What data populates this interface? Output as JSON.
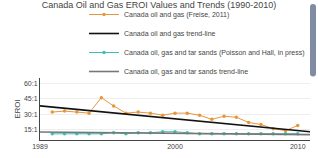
{
  "chart_data": {
    "type": "line",
    "title": "Canada Oil and Gas EROI Values and Trends (1990-2010)",
    "ylabel": "EROI",
    "xlim": [
      1989,
      2011
    ],
    "ylim": [
      5,
      65
    ],
    "xticks": [
      1989,
      2000,
      2010
    ],
    "yticks": [
      {
        "value": 15,
        "label": "15:1"
      },
      {
        "value": 30,
        "label": "30:1"
      },
      {
        "value": 45,
        "label": "45:1"
      },
      {
        "value": 60,
        "label": "60:1"
      }
    ],
    "grid": "y",
    "legend": "upper right",
    "series": [
      {
        "name": "Canada oil and gas (Freise, 2011)",
        "color": "#E8963C",
        "x": [
          1990,
          1991,
          1992,
          1993,
          1994,
          1995,
          1996,
          1997,
          1998,
          1999,
          2000,
          2001,
          2002,
          2003,
          2004,
          2005,
          2006,
          2007,
          2008,
          2009,
          2010
        ],
        "values": [
          32,
          33,
          32,
          31,
          46,
          38,
          31,
          32,
          31,
          29,
          31,
          31,
          29,
          25,
          28,
          27,
          22,
          20,
          16,
          14,
          19
        ],
        "marker": "circle",
        "line_style": "solid"
      },
      {
        "name": "Canada oil and gas trend-line",
        "color": "#111111",
        "x": [
          1989,
          2011
        ],
        "values": [
          38,
          13
        ],
        "line_style": "solid"
      },
      {
        "name": "Canada oil, gas and tar sands (Poisson and Hall, in press)",
        "color": "#3ABFB0",
        "x": [
          1990,
          1991,
          1992,
          1993,
          1994,
          1995,
          1996,
          1997,
          1998,
          1999,
          2000,
          2001,
          2002,
          2003,
          2004,
          2005,
          2006,
          2007,
          2008,
          2009,
          2010
        ],
        "values": [
          11,
          11,
          11,
          11,
          11,
          12,
          11,
          12,
          12,
          13,
          13,
          12,
          11,
          11,
          11,
          11,
          11,
          11,
          11,
          11,
          11
        ],
        "marker": "circle",
        "line_style": "solid"
      },
      {
        "name": "Canada oil, gas and tar sands trend-line",
        "color": "#777777",
        "x": [
          1989,
          2011
        ],
        "values": [
          12.8,
          10.2
        ],
        "line_style": "solid"
      }
    ]
  }
}
